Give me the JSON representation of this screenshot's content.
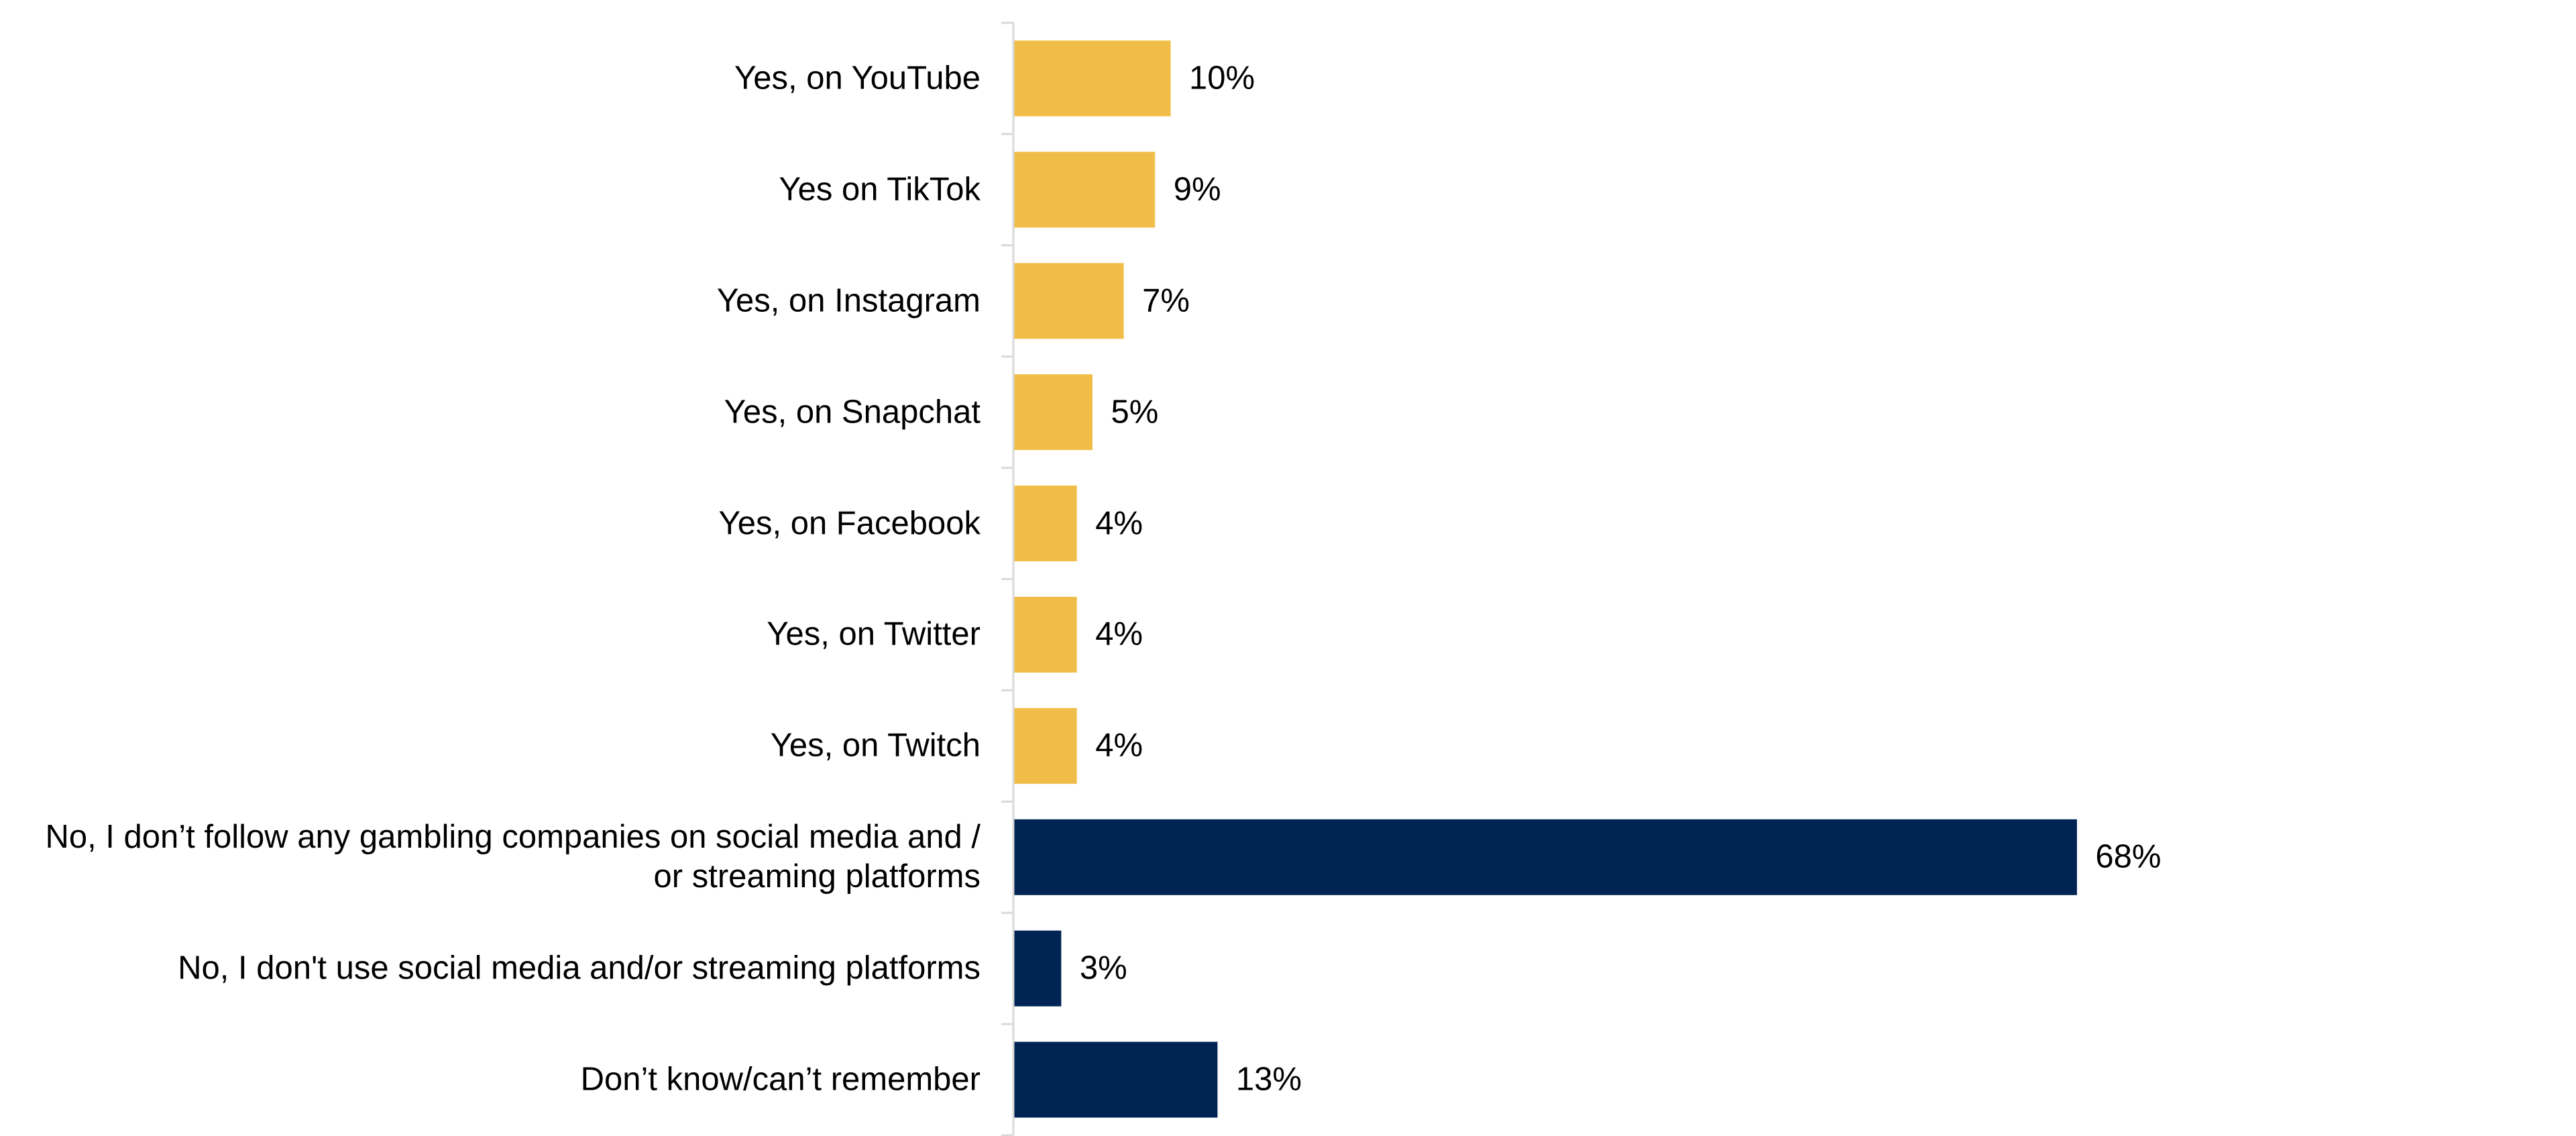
{
  "chart_data": {
    "type": "bar",
    "orientation": "horizontal",
    "categories": [
      "Yes, on YouTube",
      "Yes on TikTok",
      "Yes, on Instagram",
      "Yes, on Snapchat",
      "Yes, on Facebook",
      "Yes, on Twitter",
      "Yes, on Twitch",
      "No, I don’t follow any gambling companies on social media and / or streaming platforms",
      "No, I don't use social media and/or streaming platforms",
      "Don’t know/can’t remember"
    ],
    "values": [
      10,
      9,
      7,
      5,
      4,
      4,
      4,
      68,
      3,
      13
    ],
    "value_labels": [
      "10%",
      "9%",
      "7%",
      "5%",
      "4%",
      "4%",
      "4%",
      "68%",
      "3%",
      "13%"
    ],
    "colors": [
      "#f0be48",
      "#f0be48",
      "#f0be48",
      "#f0be48",
      "#f0be48",
      "#f0be48",
      "#f0be48",
      "#002554",
      "#002554",
      "#002554"
    ]
  }
}
